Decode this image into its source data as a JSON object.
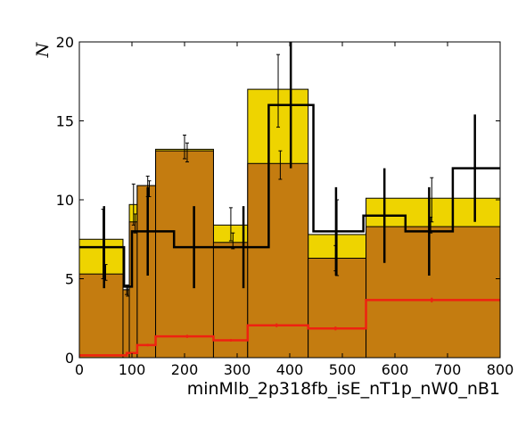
{
  "chart_data": {
    "type": "bar",
    "title": "",
    "xlabel": "minMlb_2p318fb_isE_nT1p_nW0_nB1",
    "ylabel": "N",
    "xlim": [
      0,
      800
    ],
    "ylim": [
      0,
      20
    ],
    "xticks": [
      0,
      100,
      200,
      300,
      400,
      500,
      600,
      700,
      800
    ],
    "yticks": [
      0,
      5,
      10,
      15,
      20
    ],
    "grid": false,
    "legend": "none",
    "colors": {
      "stack_top": "#eed400",
      "stack_bottom": "#c47c10",
      "data_line": "#000000",
      "signal_line": "#ee2211"
    },
    "series": [
      {
        "kind": "stacked-bar-top",
        "edges": [
          0,
          83,
          95,
          110,
          145,
          255,
          320,
          435,
          545,
          800
        ],
        "values": [
          7.5,
          4.3,
          9.7,
          10.9,
          13.2,
          8.4,
          17.0,
          7.8,
          10.1
        ],
        "err_x": [
          45,
          90,
          103,
          130,
          200,
          288,
          378,
          490,
          670
        ],
        "err_lo": [
          5.0,
          4.0,
          8.4,
          10.2,
          12.6,
          7.4,
          14.6,
          5.2,
          8.6
        ],
        "err_hi": [
          9.4,
          4.6,
          11.0,
          11.5,
          14.1,
          9.5,
          19.2,
          10.0,
          11.4
        ]
      },
      {
        "kind": "stacked-bar-bottom",
        "edges": [
          0,
          83,
          95,
          110,
          145,
          255,
          320,
          435,
          545,
          800
        ],
        "values": [
          5.3,
          4.3,
          8.6,
          10.9,
          13.1,
          7.3,
          12.3,
          6.3,
          8.3
        ],
        "err_x": [
          50,
          92,
          106,
          133,
          205,
          292,
          382,
          487,
          668
        ],
        "err_lo": [
          4.9,
          3.9,
          7.9,
          10.2,
          12.4,
          6.9,
          11.3,
          5.5,
          7.9
        ],
        "err_hi": [
          5.9,
          4.6,
          9.1,
          11.2,
          13.6,
          7.9,
          13.1,
          7.1,
          8.9
        ]
      },
      {
        "kind": "data-step",
        "edges": [
          0,
          85,
          100,
          120,
          145,
          180,
          255,
          320,
          360,
          445,
          540,
          620,
          710,
          800
        ],
        "values": [
          7,
          4.5,
          8,
          8,
          8,
          7,
          7,
          7,
          16,
          8,
          9,
          8,
          12
        ],
        "err_x": [
          47,
          130,
          218,
          312,
          402,
          488,
          580,
          665,
          752
        ],
        "err_lo": [
          4.4,
          5.2,
          4.4,
          4.4,
          12.0,
          5.2,
          6.0,
          5.2,
          8.6
        ],
        "err_hi": [
          9.6,
          10.8,
          9.6,
          9.6,
          20.0,
          10.8,
          12.0,
          10.8,
          15.4
        ]
      },
      {
        "kind": "signal-step",
        "edges": [
          0,
          90,
          110,
          145,
          255,
          320,
          435,
          545,
          800
        ],
        "values": [
          0.15,
          0.3,
          0.8,
          1.35,
          1.1,
          2.05,
          1.85,
          3.65
        ],
        "err_x": [
          130,
          205,
          288,
          375,
          487,
          670
        ],
        "err_half": [
          0.08,
          0.1,
          0.08,
          0.12,
          0.12,
          0.15
        ]
      }
    ]
  }
}
